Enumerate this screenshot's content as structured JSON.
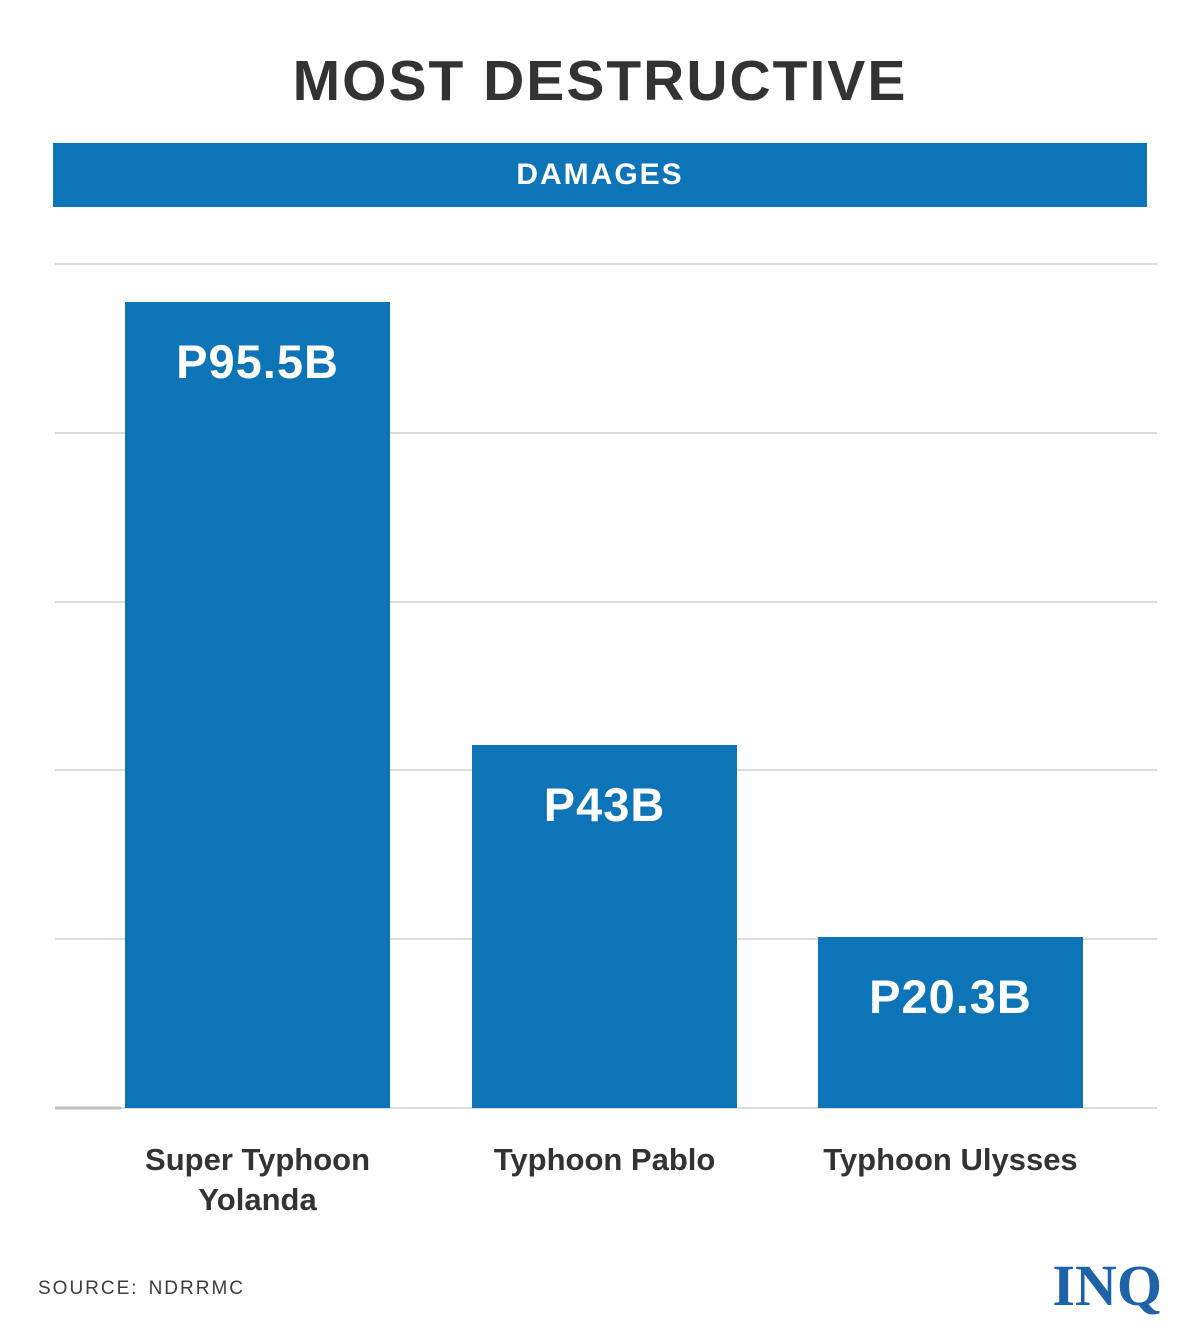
{
  "header": {
    "title": "MOST DESTRUCTIVE",
    "banner": "DAMAGES"
  },
  "chart_data": {
    "type": "bar",
    "title": "MOST DESTRUCTIVE",
    "subtitle": "DAMAGES",
    "categories": [
      "Super Typhoon Yolanda",
      "Typhoon Pablo",
      "Typhoon Ulysses"
    ],
    "values": [
      95.5,
      43,
      20.3
    ],
    "value_labels": [
      "P95.5B",
      "P43B",
      "P20.3B"
    ],
    "ylim": [
      0,
      100
    ],
    "gridline_values": [
      0,
      20,
      40,
      60,
      80,
      100
    ],
    "grid": true,
    "legend": "none",
    "bar_color": "#0d74b8",
    "value_label_color": "#ffffff",
    "category_label_color": "#333333"
  },
  "footer": {
    "source_label": "SOURCE:",
    "source_value": "NDRRMC",
    "logo": "INQ",
    "logo_color": "#1e63a8"
  },
  "colors": {
    "accent_blue": "#0d74b8",
    "title_color": "#333333",
    "gridline": "#dcdcdc"
  }
}
